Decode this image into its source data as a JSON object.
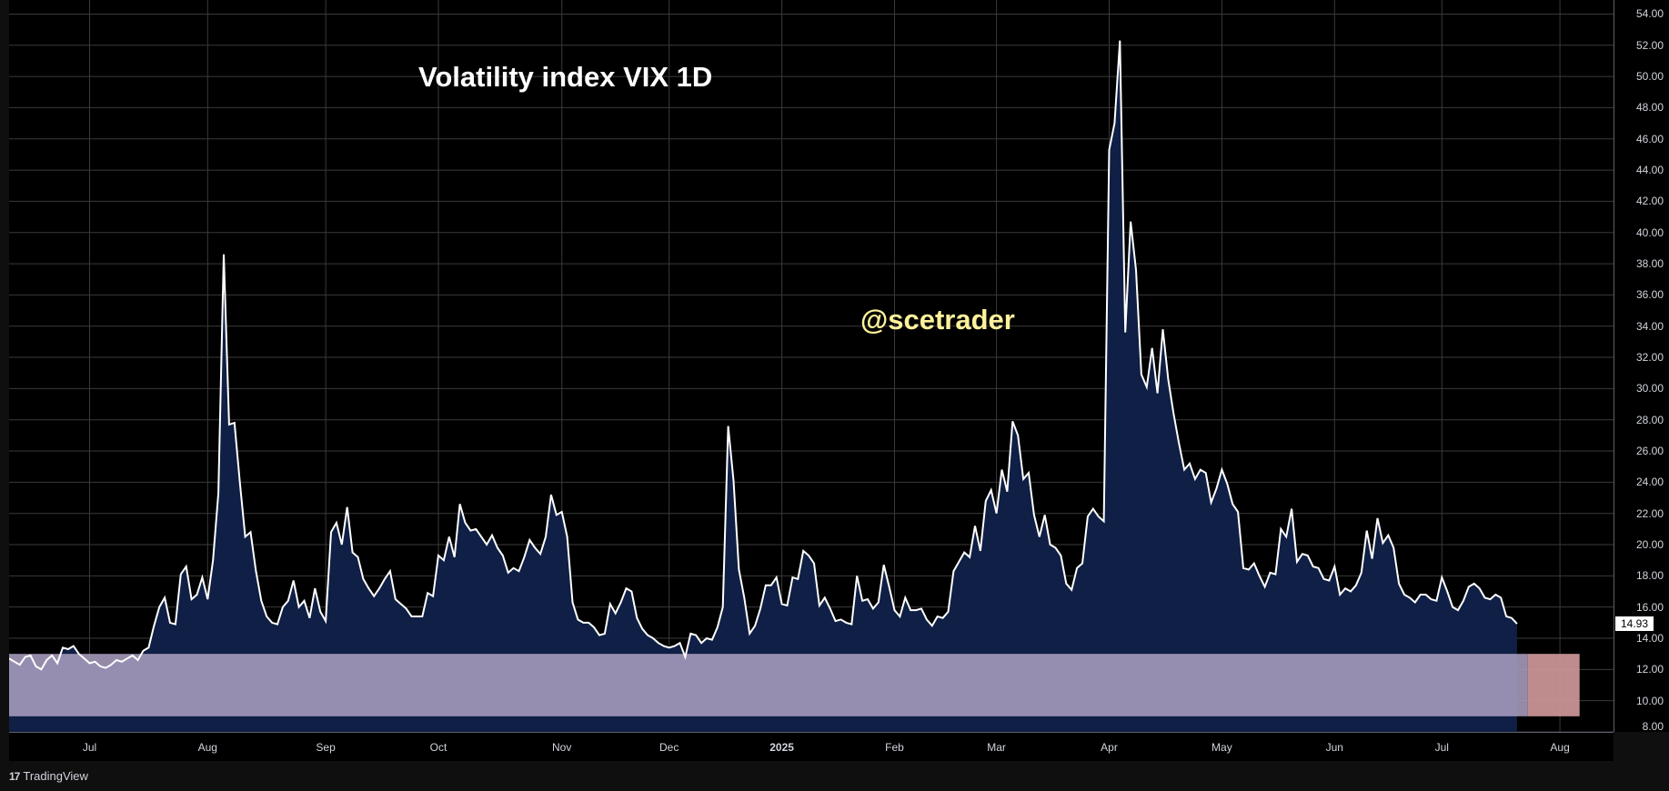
{
  "title": "Volatility index VIX 1D",
  "watermark": "@scetrader",
  "brand": {
    "logo": "17",
    "name": "TradingView"
  },
  "last_price_label": "14.93",
  "colors": {
    "background": "#000000",
    "line": "#ffffff",
    "area_fill": "#0f1f45",
    "band_fill": "#a59abb",
    "band_right_fill": "#d39b9b",
    "grid": "#3a3a3a",
    "title": "#ffffff",
    "watermark": "#fdf29b"
  },
  "chart_data": {
    "type": "area",
    "ylim": [
      8,
      54.9
    ],
    "y_ticks": [
      "54.00",
      "52.00",
      "50.00",
      "48.00",
      "46.00",
      "44.00",
      "42.00",
      "40.00",
      "38.00",
      "36.00",
      "34.00",
      "32.00",
      "30.00",
      "28.00",
      "26.00",
      "24.00",
      "22.00",
      "20.00",
      "18.00",
      "16.00",
      "14.00",
      "12.00",
      "10.00",
      "8.00"
    ],
    "x_ticks": [
      {
        "label": "Jul",
        "i": 15,
        "bold": false
      },
      {
        "label": "Aug",
        "i": 37,
        "bold": false
      },
      {
        "label": "Sep",
        "i": 59,
        "bold": false
      },
      {
        "label": "Oct",
        "i": 80,
        "bold": false
      },
      {
        "label": "Nov",
        "i": 103,
        "bold": false
      },
      {
        "label": "Dec",
        "i": 123,
        "bold": false
      },
      {
        "label": "2025",
        "i": 144,
        "bold": true
      },
      {
        "label": "Feb",
        "i": 165,
        "bold": false
      },
      {
        "label": "Mar",
        "i": 184,
        "bold": false
      },
      {
        "label": "Apr",
        "i": 205,
        "bold": false
      },
      {
        "label": "May",
        "i": 226,
        "bold": false
      },
      {
        "label": "Jun",
        "i": 247,
        "bold": false
      },
      {
        "label": "Jul",
        "i": 267,
        "bold": false
      },
      {
        "label": "Aug",
        "i": 289,
        "bold": false
      }
    ],
    "band": {
      "from": 9.0,
      "to": 13.0,
      "to_index": 283
    },
    "values": [
      12.7,
      12.5,
      12.3,
      12.8,
      12.9,
      12.2,
      12.0,
      12.6,
      12.9,
      12.4,
      13.4,
      13.3,
      13.5,
      13.0,
      12.7,
      12.4,
      12.5,
      12.2,
      12.1,
      12.3,
      12.6,
      12.5,
      12.7,
      12.9,
      12.6,
      13.2,
      13.4,
      14.8,
      16.0,
      16.6,
      15.0,
      14.9,
      18.1,
      18.6,
      16.5,
      16.8,
      17.9,
      16.5,
      19.0,
      23.3,
      38.6,
      27.7,
      27.8,
      24.0,
      20.5,
      20.8,
      18.3,
      16.4,
      15.4,
      15.0,
      14.9,
      16.0,
      16.4,
      17.7,
      16.0,
      16.4,
      15.3,
      17.2,
      15.7,
      15.1,
      20.8,
      21.4,
      20.0,
      22.4,
      19.5,
      19.2,
      17.8,
      17.2,
      16.7,
      17.2,
      17.8,
      18.3,
      16.5,
      16.2,
      15.9,
      15.4,
      15.4,
      15.4,
      16.9,
      16.7,
      19.3,
      19.0,
      20.5,
      19.2,
      22.6,
      21.4,
      20.9,
      21.0,
      20.5,
      20.0,
      20.6,
      19.8,
      19.3,
      18.2,
      18.5,
      18.3,
      19.2,
      20.3,
      19.8,
      19.4,
      20.5,
      23.2,
      21.9,
      22.1,
      20.5,
      16.3,
      15.2,
      15.0,
      15.0,
      14.7,
      14.2,
      14.3,
      16.2,
      15.6,
      16.3,
      17.2,
      17.0,
      15.3,
      14.6,
      14.2,
      14.0,
      13.7,
      13.5,
      13.4,
      13.5,
      13.7,
      12.8,
      14.3,
      14.2,
      13.7,
      14.0,
      13.9,
      14.7,
      16.0,
      27.6,
      24.1,
      18.4,
      16.6,
      14.3,
      14.8,
      15.9,
      17.4,
      17.4,
      17.9,
      16.2,
      16.1,
      17.9,
      17.8,
      19.6,
      19.3,
      18.8,
      16.1,
      16.6,
      15.9,
      15.1,
      15.2,
      15.0,
      14.9,
      18.0,
      16.4,
      16.5,
      15.9,
      16.3,
      18.7,
      17.3,
      15.8,
      15.4,
      16.6,
      15.8,
      15.8,
      15.9,
      15.2,
      14.8,
      15.4,
      15.3,
      15.7,
      18.3,
      18.9,
      19.5,
      19.2,
      21.2,
      19.6,
      22.8,
      23.5,
      22.0,
      24.8,
      23.4,
      27.9,
      27.0,
      24.2,
      24.6,
      21.9,
      20.5,
      21.9,
      20.0,
      19.8,
      19.3,
      17.5,
      17.1,
      18.5,
      18.8,
      21.8,
      22.3,
      21.8,
      21.5,
      45.3,
      47.0,
      52.3,
      33.6,
      40.7,
      37.6,
      30.9,
      30.1,
      32.6,
      29.7,
      33.8,
      30.6,
      28.4,
      26.5,
      24.8,
      25.2,
      24.2,
      24.8,
      24.6,
      22.7,
      23.6,
      24.8,
      23.9,
      22.6,
      22.1,
      18.5,
      18.4,
      18.8,
      18.0,
      17.3,
      18.2,
      18.1,
      21.0,
      20.5,
      22.3,
      18.9,
      19.4,
      19.3,
      18.6,
      18.5,
      17.8,
      17.7,
      18.6,
      16.8,
      17.2,
      17.0,
      17.4,
      18.2,
      20.9,
      19.1,
      21.7,
      20.1,
      20.6,
      19.8,
      17.5,
      16.8,
      16.6,
      16.3,
      16.8,
      16.8,
      16.5,
      16.4,
      17.9,
      17.0,
      16.0,
      15.8,
      16.4,
      17.3,
      17.5,
      17.2,
      16.6,
      16.5,
      16.8,
      16.6,
      15.4,
      15.3,
      14.93
    ]
  }
}
